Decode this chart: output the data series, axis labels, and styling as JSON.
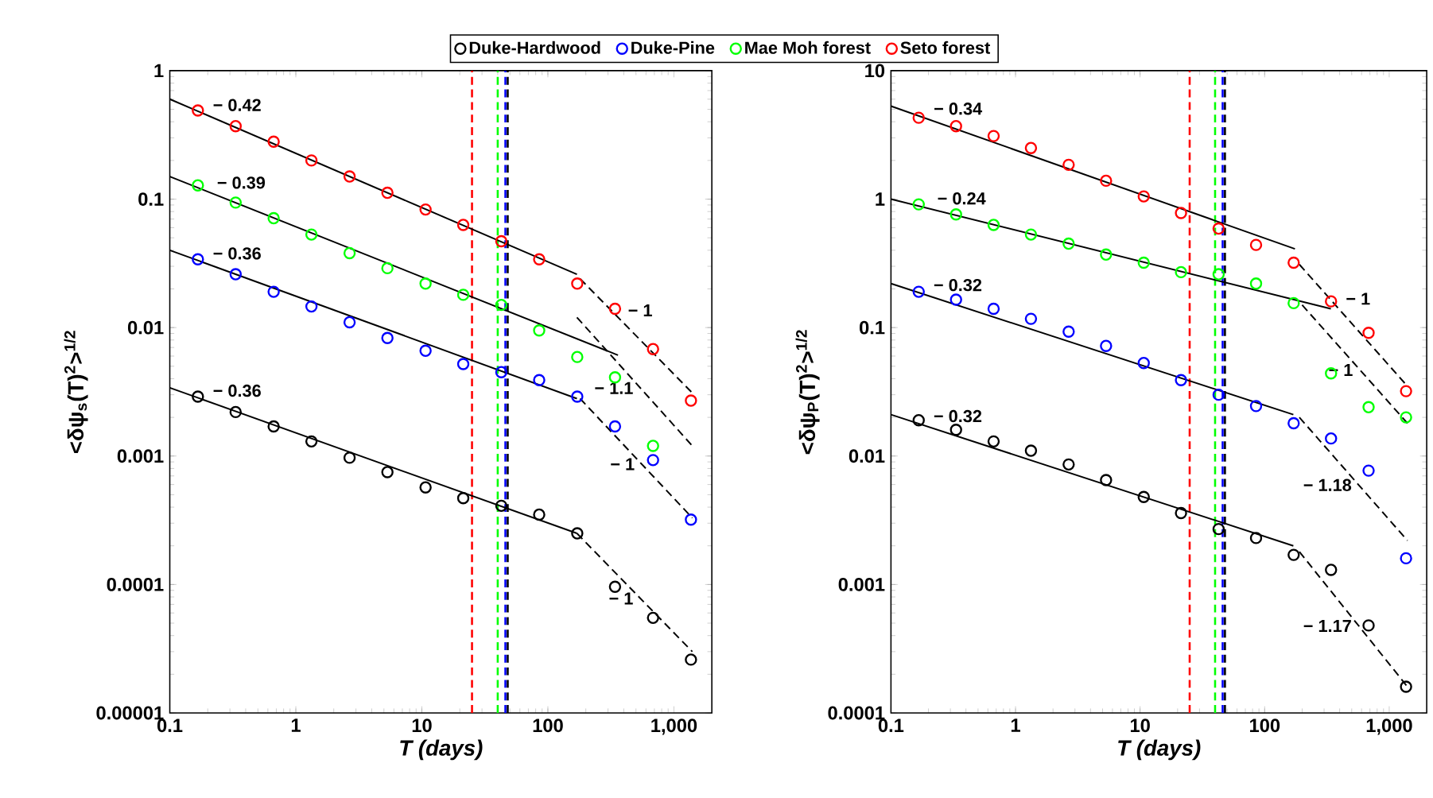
{
  "chart_data": [
    {
      "type": "scatter",
      "xlabel": "T (days)",
      "ylabel": "<δψ$_{s}$(T)$^{2}$>$^{1/2}$",
      "log": "xy",
      "legend": "top",
      "marker": "circle",
      "grid": false,
      "xlim": [
        0.1,
        2000
      ],
      "ylim": [
        1e-05,
        1
      ],
      "xticks": [
        {
          "value": 0.1,
          "label": "0.1"
        },
        {
          "value": 1,
          "label": "1"
        },
        {
          "value": 10,
          "label": "10"
        },
        {
          "value": 100,
          "label": "100"
        },
        {
          "value": 1000,
          "label": "1,000"
        }
      ],
      "yticks": [
        {
          "value": 1e-05,
          "label": "0.00001"
        },
        {
          "value": 0.0001,
          "label": "0.0001"
        },
        {
          "value": 0.001,
          "label": "0.001"
        },
        {
          "value": 0.01,
          "label": "0.01"
        },
        {
          "value": 0.1,
          "label": "0.1"
        },
        {
          "value": 1,
          "label": "1"
        }
      ],
      "x": [
        0.167,
        0.333,
        0.667,
        1.33,
        2.67,
        5.33,
        10.7,
        21.3,
        42.7,
        85.3,
        171,
        341,
        683,
        1365
      ],
      "series": [
        {
          "name": "Duke-Hardwood",
          "color": "#000000",
          "values": [
            0.0029,
            0.0022,
            0.0017,
            0.0013,
            0.00097,
            0.00075,
            0.00057,
            0.00047,
            0.00041,
            0.00035,
            0.00025,
            9.6e-05,
            5.5e-05,
            2.6e-05
          ]
        },
        {
          "name": "Duke-Pine",
          "color": "#0000ff",
          "values": [
            0.034,
            0.026,
            0.019,
            0.0146,
            0.011,
            0.0083,
            0.0066,
            0.0052,
            0.0045,
            0.0039,
            0.0029,
            0.0017,
            0.00093,
            0.00032
          ]
        },
        {
          "name": "Mae Moh forest",
          "color": "#00ff00",
          "values": [
            0.128,
            0.094,
            0.071,
            0.053,
            0.038,
            0.029,
            0.022,
            0.018,
            0.015,
            0.0095,
            0.0059,
            0.0041,
            0.0012,
            null
          ]
        },
        {
          "name": "Seto forest",
          "color": "#ff0000",
          "values": [
            0.49,
            0.37,
            0.28,
            0.2,
            0.15,
            0.112,
            0.083,
            0.063,
            0.047,
            0.034,
            0.022,
            0.014,
            0.0068,
            0.0027
          ]
        },
        {
          "type": "line",
          "name": "− 0.36",
          "color": "#000000",
          "line_style": "solid",
          "marker": "none",
          "x": [
            0.1,
            170
          ],
          "values": [
            0.0034,
            0.00025
          ]
        },
        {
          "type": "line",
          "name": "− 1",
          "color": "#000000",
          "line_style": "dashed",
          "marker": "none",
          "x": [
            170,
            1400
          ],
          "values": [
            0.00025,
            3e-05
          ]
        },
        {
          "type": "line",
          "name": "− 0.36",
          "color": "#000000",
          "line_style": "solid",
          "marker": "none",
          "x": [
            0.1,
            170
          ],
          "values": [
            0.04,
            0.0028
          ]
        },
        {
          "type": "line",
          "name": "− 1",
          "color": "#000000",
          "line_style": "dashed",
          "marker": "none",
          "x": [
            180,
            1400
          ],
          "values": [
            0.0028,
            0.00033
          ]
        },
        {
          "type": "line",
          "name": "− 0.39",
          "color": "#000000",
          "line_style": "solid",
          "marker": "none",
          "x": [
            0.1,
            360
          ],
          "values": [
            0.15,
            0.0061
          ]
        },
        {
          "type": "line",
          "name": "− 1.1",
          "color": "#000000",
          "line_style": "dashed",
          "marker": "none",
          "x": [
            170,
            1400
          ],
          "values": [
            0.012,
            0.0012
          ]
        },
        {
          "type": "line",
          "name": "− 0.42",
          "color": "#000000",
          "line_style": "solid",
          "marker": "none",
          "x": [
            0.1,
            170
          ],
          "values": [
            0.6,
            0.026
          ]
        },
        {
          "type": "line",
          "name": "− 1",
          "color": "#000000",
          "line_style": "dashed",
          "marker": "none",
          "x": [
            180,
            1400
          ],
          "values": [
            0.024,
            0.0031
          ]
        }
      ],
      "ref_lines": [
        {
          "axis": "x",
          "value": 25,
          "color": "#ff0000",
          "line_style": "dashed"
        },
        {
          "axis": "x",
          "value": 40,
          "color": "#00ff00",
          "line_style": "dashed"
        },
        {
          "axis": "x",
          "value": 46,
          "color": "#0000ff",
          "line_style": "dashed"
        },
        {
          "axis": "x",
          "value": 48,
          "color": "#000000",
          "line_style": "dashed"
        }
      ]
    },
    {
      "type": "scatter",
      "xlabel": "T (days)",
      "ylabel": "<δψ$_{P}$(T)$^{2}$>$^{1/2}$",
      "log": "xy",
      "marker": "circle",
      "grid": false,
      "xlim": [
        0.1,
        2000
      ],
      "ylim": [
        0.0001,
        10
      ],
      "xticks": [
        {
          "value": 0.1,
          "label": "0.1"
        },
        {
          "value": 1,
          "label": "1"
        },
        {
          "value": 10,
          "label": "10"
        },
        {
          "value": 100,
          "label": "100"
        },
        {
          "value": 1000,
          "label": "1,000"
        }
      ],
      "yticks": [
        {
          "value": 0.0001,
          "label": "0.0001"
        },
        {
          "value": 0.001,
          "label": "0.001"
        },
        {
          "value": 0.01,
          "label": "0.01"
        },
        {
          "value": 0.1,
          "label": "0.1"
        },
        {
          "value": 1,
          "label": "1"
        },
        {
          "value": 10,
          "label": "10"
        }
      ],
      "x": [
        0.167,
        0.333,
        0.667,
        1.33,
        2.67,
        5.33,
        10.7,
        21.3,
        42.7,
        85.3,
        171,
        341,
        683,
        1365
      ],
      "series": [
        {
          "color": "#000000",
          "values": [
            0.019,
            0.016,
            0.013,
            0.011,
            0.0086,
            0.0065,
            0.0048,
            0.0036,
            0.0027,
            0.0023,
            0.0017,
            0.0013,
            0.00048,
            0.00016
          ]
        },
        {
          "color": "#0000ff",
          "values": [
            0.19,
            0.165,
            0.14,
            0.117,
            0.093,
            0.072,
            0.053,
            0.039,
            0.03,
            0.0245,
            0.018,
            0.0137,
            0.0077,
            0.0016
          ]
        },
        {
          "color": "#00ff00",
          "values": [
            0.91,
            0.76,
            0.63,
            0.53,
            0.45,
            0.37,
            0.32,
            0.27,
            0.26,
            0.22,
            0.155,
            0.044,
            0.024,
            0.02
          ]
        },
        {
          "color": "#ff0000",
          "values": [
            4.3,
            3.7,
            3.1,
            2.5,
            1.85,
            1.39,
            1.05,
            0.78,
            0.59,
            0.44,
            0.32,
            0.16,
            0.091,
            0.032
          ]
        },
        {
          "type": "line",
          "name": "− 0.32",
          "color": "#000000",
          "line_style": "solid",
          "marker": "none",
          "x": [
            0.1,
            170
          ],
          "values": [
            0.021,
            0.002
          ]
        },
        {
          "type": "line",
          "name": "− 1.17",
          "color": "#000000",
          "line_style": "dashed",
          "marker": "none",
          "x": [
            190,
            1400
          ],
          "values": [
            0.0018,
            0.00016
          ]
        },
        {
          "type": "line",
          "name": "− 0.32",
          "color": "#000000",
          "line_style": "solid",
          "marker": "none",
          "x": [
            0.1,
            170
          ],
          "values": [
            0.22,
            0.021
          ]
        },
        {
          "type": "line",
          "name": "− 1.18",
          "color": "#000000",
          "line_style": "dashed",
          "marker": "none",
          "x": [
            190,
            1400
          ],
          "values": [
            0.02,
            0.0022
          ]
        },
        {
          "type": "line",
          "name": "− 0.24",
          "color": "#000000",
          "line_style": "solid",
          "marker": "none",
          "x": [
            0.1,
            340
          ],
          "values": [
            1.0,
            0.14
          ]
        },
        {
          "type": "line",
          "name": "− 1",
          "color": "#000000",
          "line_style": "dashed",
          "marker": "none",
          "x": [
            200,
            1400
          ],
          "values": [
            0.15,
            0.018
          ]
        },
        {
          "type": "line",
          "name": "− 0.34",
          "color": "#000000",
          "line_style": "solid",
          "marker": "none",
          "x": [
            0.1,
            175
          ],
          "values": [
            5.3,
            0.41
          ]
        },
        {
          "type": "line",
          "name": "− 1",
          "color": "#000000",
          "line_style": "dashed",
          "marker": "none",
          "x": [
            190,
            1400
          ],
          "values": [
            0.31,
            0.035
          ]
        }
      ],
      "ref_lines": [
        {
          "axis": "x",
          "value": 25,
          "color": "#ff0000",
          "line_style": "dashed"
        },
        {
          "axis": "x",
          "value": 40,
          "color": "#00ff00",
          "line_style": "dashed"
        },
        {
          "axis": "x",
          "value": 46,
          "color": "#0000ff",
          "line_style": "dashed"
        },
        {
          "axis": "x",
          "value": 48,
          "color": "#000000",
          "line_style": "dashed"
        }
      ]
    }
  ]
}
